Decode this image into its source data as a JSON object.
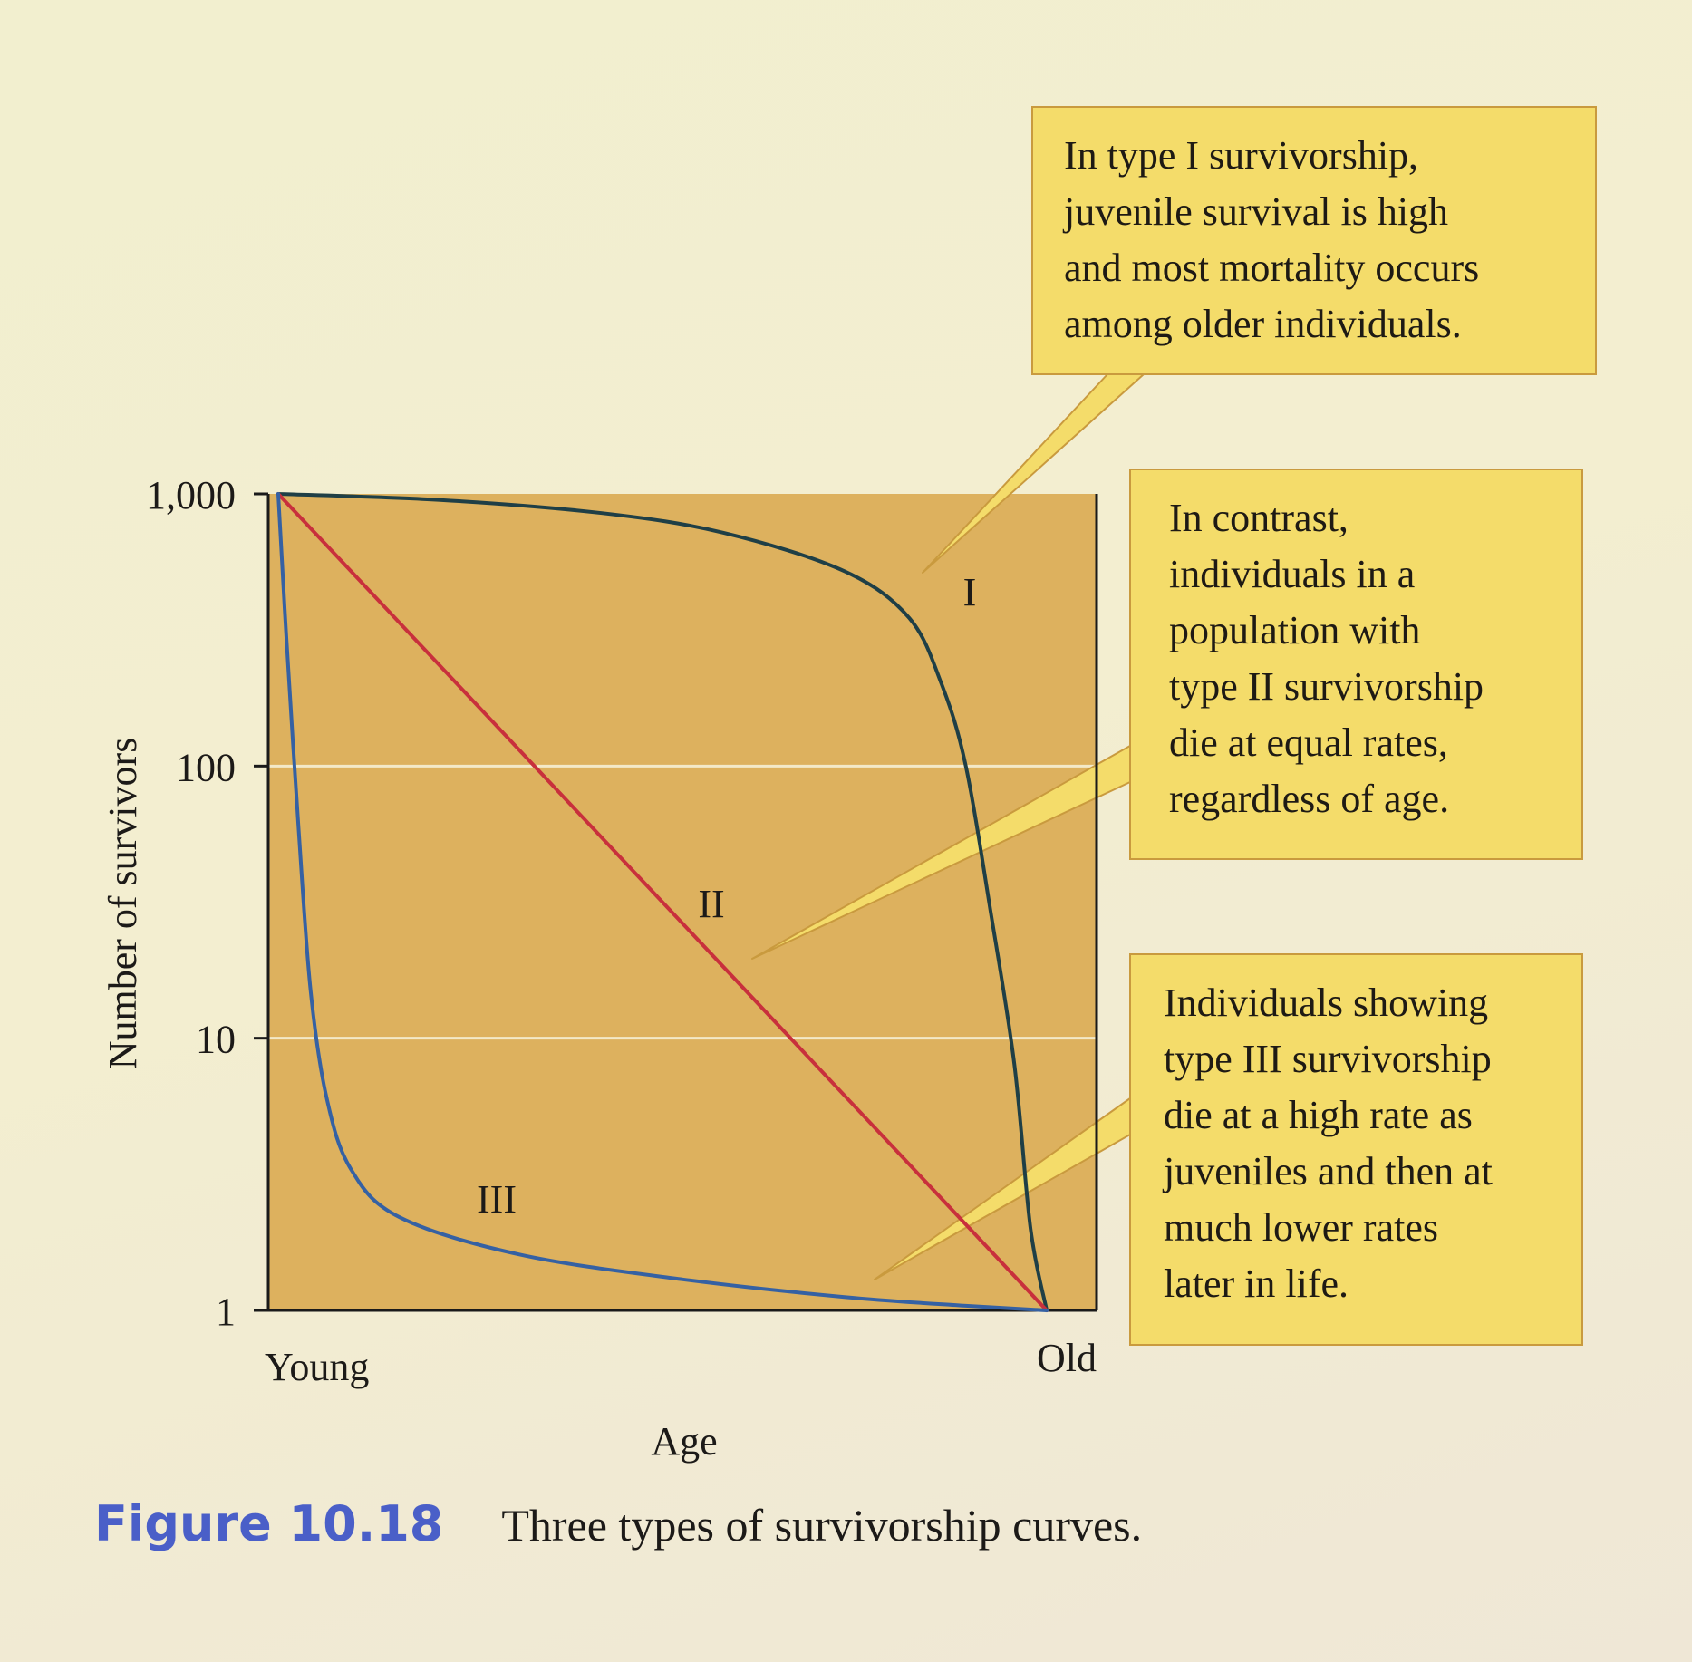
{
  "figure": {
    "label": "Figure 10.18",
    "caption": "Three types of survivorship curves."
  },
  "callouts": {
    "type1": [
      "In type I survivorship,",
      "juvenile survival is high",
      "and most mortality occurs",
      "among older individuals."
    ],
    "type2": [
      "In contrast,",
      "individuals in a",
      "population with",
      "type II survivorship",
      "die at equal rates,",
      "regardless of age."
    ],
    "type3": [
      "Individuals showing",
      "type III survivorship",
      "die at a high rate as",
      "juveniles and then at",
      "much lower rates",
      "later in life."
    ]
  },
  "colors": {
    "plot_bg": "#ddb15e",
    "type1": "#1f3f46",
    "type2": "#c8303c",
    "type3": "#3561a3",
    "callout_bg": "#f4dc6a",
    "callout_border": "#c99a3e",
    "caption_label": "#4a5fc8"
  },
  "chart_data": {
    "type": "line",
    "xlabel": "Age",
    "ylabel": "Number of survivors",
    "x_tick_labels": [
      "Young",
      "Old"
    ],
    "y_scale": "log",
    "y_ticks": [
      1,
      10,
      100,
      1000
    ],
    "y_tick_labels": [
      "1",
      "10",
      "100",
      "1,000"
    ],
    "ylim": [
      1,
      1000
    ],
    "x_domain": [
      0,
      1
    ],
    "grid": "horizontal at 10 and 100",
    "series": [
      {
        "name": "I",
        "color": "#1f3f46",
        "points": [
          [
            0,
            1000
          ],
          [
            0.2,
            950
          ],
          [
            0.4,
            850
          ],
          [
            0.55,
            720
          ],
          [
            0.7,
            520
          ],
          [
            0.78,
            350
          ],
          [
            0.82,
            200
          ],
          [
            0.85,
            100
          ],
          [
            0.88,
            30
          ],
          [
            0.91,
            8
          ],
          [
            0.93,
            2
          ],
          [
            0.95,
            1
          ]
        ]
      },
      {
        "name": "II",
        "color": "#c8303c",
        "points": [
          [
            0,
            1000
          ],
          [
            0.95,
            1
          ]
        ]
      },
      {
        "name": "III",
        "color": "#3561a3",
        "points": [
          [
            0,
            1000
          ],
          [
            0.01,
            300
          ],
          [
            0.025,
            60
          ],
          [
            0.04,
            15
          ],
          [
            0.06,
            6
          ],
          [
            0.09,
            3.3
          ],
          [
            0.15,
            2.2
          ],
          [
            0.3,
            1.6
          ],
          [
            0.5,
            1.3
          ],
          [
            0.7,
            1.12
          ],
          [
            0.85,
            1.04
          ],
          [
            0.95,
            1
          ]
        ]
      }
    ]
  }
}
